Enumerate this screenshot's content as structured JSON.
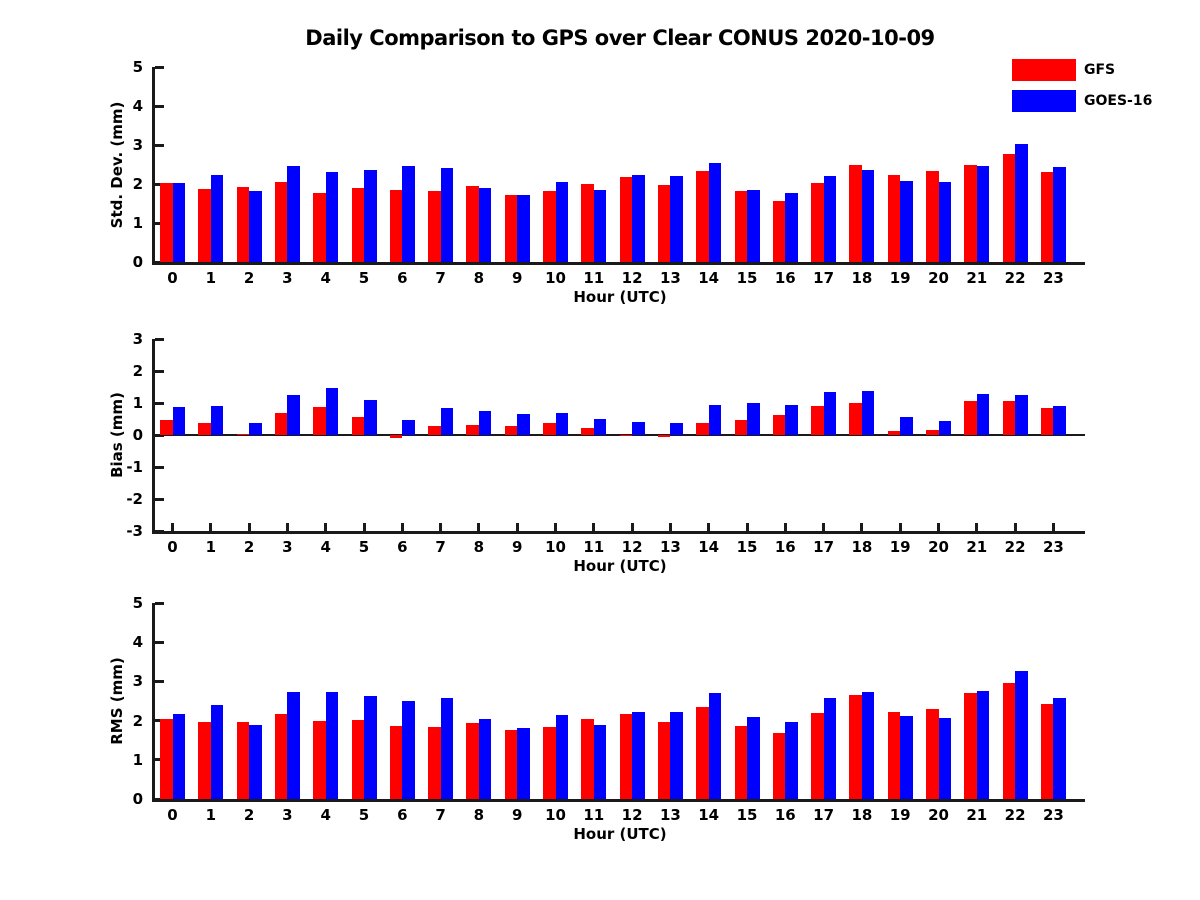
{
  "title": "Daily Comparison to GPS over Clear CONUS 2020-10-09",
  "xlabel": "Hour (UTC)",
  "legend": [
    {
      "label": "GFS",
      "color": "#ff0000"
    },
    {
      "label": "GOES-16",
      "color": "#0000ff"
    }
  ],
  "colors": {
    "gfs": "#ff0000",
    "goes16": "#0000ff",
    "axis": "#1a1a1a",
    "text": "#000000"
  },
  "chart_data": [
    {
      "type": "bar",
      "title": "",
      "ylabel": "Std. Dev. (mm)",
      "xlabel": "Hour (UTC)",
      "ylim": [
        0,
        5
      ],
      "yticks": [
        0,
        1,
        2,
        3,
        4,
        5
      ],
      "grid": false,
      "legend_position": "upper-right-of-figure",
      "categories": [
        "0",
        "1",
        "2",
        "3",
        "4",
        "5",
        "6",
        "7",
        "8",
        "9",
        "10",
        "11",
        "12",
        "13",
        "14",
        "15",
        "16",
        "17",
        "18",
        "19",
        "20",
        "21",
        "22",
        "23"
      ],
      "series": [
        {
          "name": "GFS",
          "color": "#ff0000",
          "values": [
            2.02,
            1.87,
            1.93,
            2.05,
            1.76,
            1.89,
            1.85,
            1.82,
            1.95,
            1.71,
            1.83,
            2.01,
            2.18,
            1.98,
            2.33,
            1.82,
            1.57,
            2.03,
            2.5,
            2.24,
            2.33,
            2.48,
            2.77,
            2.31
          ]
        },
        {
          "name": "GOES-16",
          "color": "#0000ff",
          "values": [
            2.03,
            2.24,
            1.83,
            2.45,
            2.31,
            2.36,
            2.45,
            2.42,
            1.91,
            1.71,
            2.04,
            1.84,
            2.23,
            2.2,
            2.53,
            1.84,
            1.76,
            2.2,
            2.36,
            2.08,
            2.06,
            2.46,
            3.03,
            2.43
          ]
        }
      ]
    },
    {
      "type": "bar",
      "title": "",
      "ylabel": "Bias (mm)",
      "xlabel": "Hour (UTC)",
      "ylim": [
        -3,
        3
      ],
      "yticks": [
        -3,
        -2,
        -1,
        0,
        1,
        2,
        3
      ],
      "grid": false,
      "categories": [
        "0",
        "1",
        "2",
        "3",
        "4",
        "5",
        "6",
        "7",
        "8",
        "9",
        "10",
        "11",
        "12",
        "13",
        "14",
        "15",
        "16",
        "17",
        "18",
        "19",
        "20",
        "21",
        "22",
        "23"
      ],
      "series": [
        {
          "name": "GFS",
          "color": "#ff0000",
          "values": [
            0.48,
            0.37,
            0.02,
            0.7,
            0.87,
            0.57,
            -0.08,
            0.28,
            0.32,
            0.29,
            0.36,
            0.23,
            -0.02,
            -0.05,
            0.38,
            0.46,
            0.62,
            0.9,
            0.99,
            0.12,
            0.15,
            1.05,
            1.07,
            0.84
          ]
        },
        {
          "name": "GOES-16",
          "color": "#0000ff",
          "values": [
            0.86,
            0.91,
            0.39,
            1.26,
            1.46,
            1.09,
            0.48,
            0.85,
            0.75,
            0.66,
            0.68,
            0.49,
            0.4,
            0.36,
            0.94,
            0.99,
            0.95,
            1.34,
            1.36,
            0.56,
            0.43,
            1.28,
            1.26,
            0.92
          ]
        }
      ]
    },
    {
      "type": "bar",
      "title": "",
      "ylabel": "RMS (mm)",
      "xlabel": "Hour (UTC)",
      "ylim": [
        0,
        5
      ],
      "yticks": [
        0,
        1,
        2,
        3,
        4,
        5
      ],
      "grid": false,
      "categories": [
        "0",
        "1",
        "2",
        "3",
        "4",
        "5",
        "6",
        "7",
        "8",
        "9",
        "10",
        "11",
        "12",
        "13",
        "14",
        "15",
        "16",
        "17",
        "18",
        "19",
        "20",
        "21",
        "22",
        "23"
      ],
      "series": [
        {
          "name": "GFS",
          "color": "#ff0000",
          "values": [
            2.04,
            1.96,
            1.97,
            2.17,
            1.98,
            2.01,
            1.87,
            1.83,
            1.94,
            1.75,
            1.84,
            2.03,
            2.17,
            1.97,
            2.35,
            1.86,
            1.68,
            2.2,
            2.66,
            2.23,
            2.3,
            2.7,
            2.96,
            2.43
          ]
        },
        {
          "name": "GOES-16",
          "color": "#0000ff",
          "values": [
            2.17,
            2.41,
            1.89,
            2.73,
            2.73,
            2.62,
            2.5,
            2.57,
            2.04,
            1.81,
            2.15,
            1.89,
            2.23,
            2.22,
            2.7,
            2.09,
            1.97,
            2.57,
            2.72,
            2.11,
            2.07,
            2.75,
            3.26,
            2.58
          ]
        }
      ]
    }
  ]
}
